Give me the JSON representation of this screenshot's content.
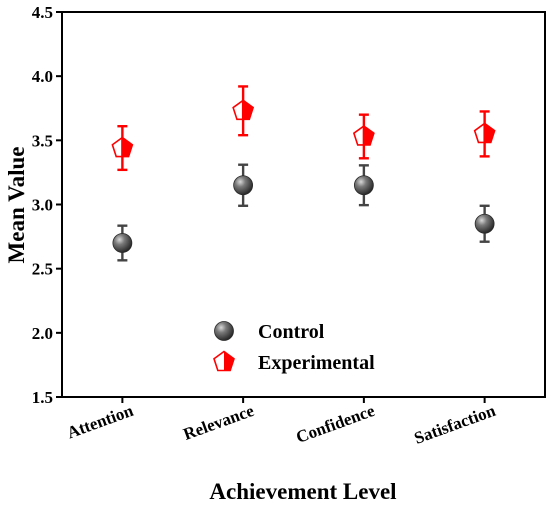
{
  "chart_data": {
    "type": "scatter",
    "title": "",
    "xlabel": "Achievement Level",
    "ylabel": "Mean Value",
    "categories": [
      "Attention",
      "Relevance",
      "Confidence",
      "Satisfaction"
    ],
    "ylim": [
      1.5,
      4.5
    ],
    "yticks": [
      "1.5",
      "2.0",
      "2.5",
      "3.0",
      "3.5",
      "4.0",
      "4.5"
    ],
    "grid": false,
    "legend_position": "bottom-center",
    "series": [
      {
        "name": "Control",
        "color": "#444444",
        "marker": "sphere",
        "values": [
          2.7,
          3.15,
          3.15,
          2.85
        ],
        "error": [
          0.135,
          0.16,
          0.155,
          0.14
        ]
      },
      {
        "name": "Experimental",
        "color": "#ff0000",
        "marker": "pentagon-half-filled",
        "values": [
          3.44,
          3.73,
          3.53,
          3.55
        ],
        "error": [
          0.17,
          0.19,
          0.17,
          0.175
        ]
      }
    ]
  }
}
